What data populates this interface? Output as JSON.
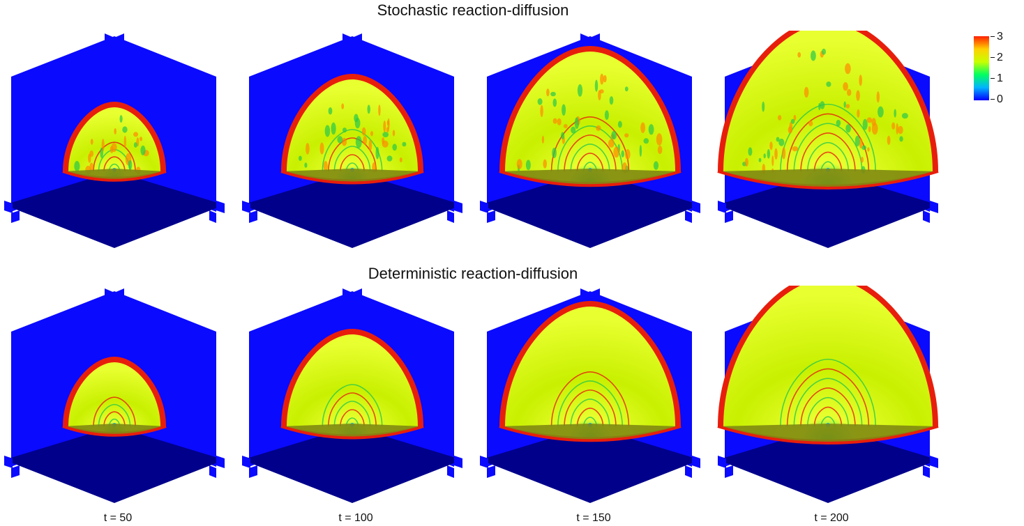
{
  "titles": {
    "top": "Stochastic reaction-diffusion",
    "bottom": "Deterministic reaction-diffusion"
  },
  "time_labels": [
    "t = 50",
    "t = 100",
    "t = 150",
    "t = 200"
  ],
  "colorbar": {
    "ticks": [
      "3",
      "2",
      "1",
      "0"
    ],
    "colors": [
      "#0000ff",
      "#00b4ff",
      "#00ff60",
      "#c8ff00",
      "#ffd000",
      "#ff2000"
    ]
  },
  "panel_fraction": [
    0.25,
    0.5,
    0.75,
    1.0
  ],
  "colors": {
    "wall": "#0a0aff",
    "floor": "#00008b",
    "front": "#e81e0c",
    "interior": "#c8f000",
    "interior_light": "#e8ff30",
    "green": "#28c84a",
    "floor_tint": "#7f8a12"
  }
}
